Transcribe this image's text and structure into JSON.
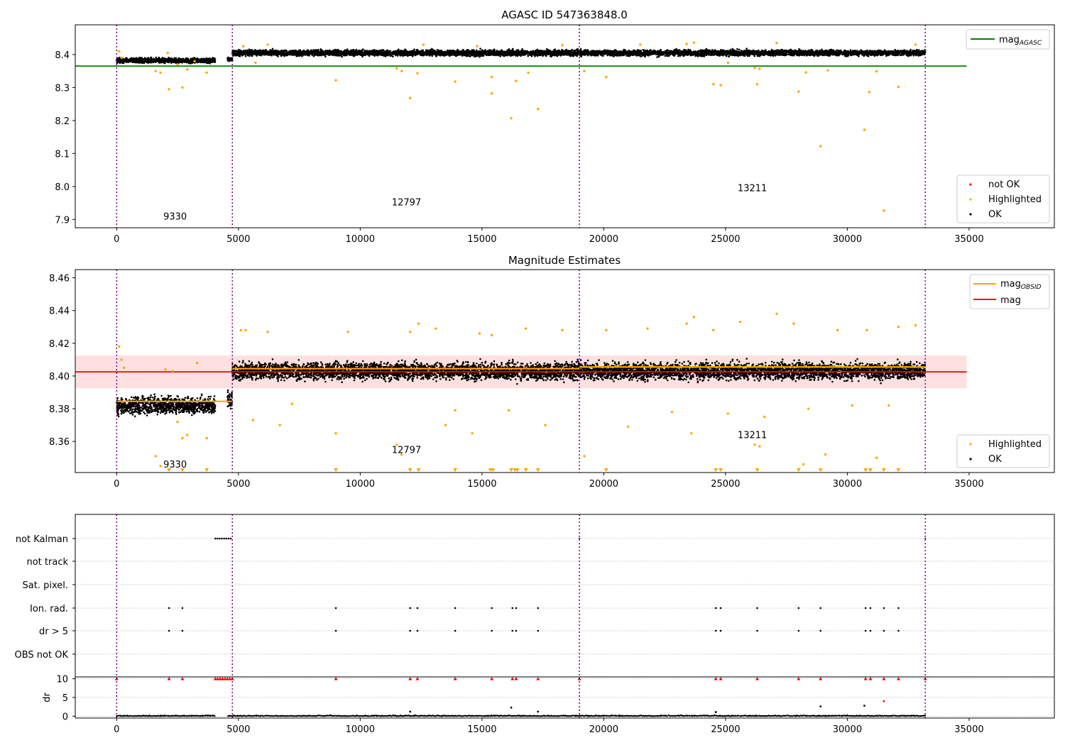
{
  "chart_data": [
    {
      "type": "scatter",
      "title": "AGASC ID 547363848.0",
      "xlim": [
        -1700,
        38500
      ],
      "ylim": [
        7.875,
        8.49
      ],
      "xticks": [
        0,
        5000,
        10000,
        15000,
        20000,
        25000,
        30000,
        35000
      ],
      "yticks": [
        7.9,
        8.0,
        8.1,
        8.2,
        8.3,
        8.4
      ],
      "obs_boundaries": [
        0,
        4750,
        19000,
        33200
      ],
      "obs_labels": [
        {
          "text": "9330",
          "x": 2400,
          "y": 7.9
        },
        {
          "text": "12797",
          "x": 11900,
          "y": 7.943
        },
        {
          "text": "13211",
          "x": 26100,
          "y": 7.986
        }
      ],
      "agasc_mag": 8.365,
      "agasc_line_x": [
        -1700,
        34900
      ],
      "ok_bands": [
        {
          "x": [
            0,
            4050
          ],
          "center": 8.382,
          "spread": 0.01
        },
        {
          "x": [
            4550,
            4750
          ],
          "center": 8.385,
          "spread": 0.009
        },
        {
          "x": [
            4750,
            33200
          ],
          "center": 8.405,
          "spread": 0.012
        }
      ],
      "highlighted_points": [
        [
          100,
          8.41
        ],
        [
          200,
          8.39
        ],
        [
          1600,
          8.35
        ],
        [
          1800,
          8.345
        ],
        [
          2100,
          8.405
        ],
        [
          2150,
          8.295
        ],
        [
          2500,
          8.37
        ],
        [
          2700,
          8.3
        ],
        [
          2900,
          8.355
        ],
        [
          3200,
          8.38
        ],
        [
          3700,
          8.345
        ],
        [
          5200,
          8.425
        ],
        [
          5700,
          8.375
        ],
        [
          6200,
          8.43
        ],
        [
          9000,
          8.322
        ],
        [
          11500,
          8.358
        ],
        [
          11700,
          8.35
        ],
        [
          12050,
          8.268
        ],
        [
          12350,
          8.343
        ],
        [
          12600,
          8.43
        ],
        [
          13900,
          8.318
        ],
        [
          14800,
          8.425
        ],
        [
          15400,
          8.332
        ],
        [
          15400,
          8.282
        ],
        [
          16200,
          8.207
        ],
        [
          16400,
          8.32
        ],
        [
          16900,
          8.345
        ],
        [
          17300,
          8.235
        ],
        [
          18300,
          8.428
        ],
        [
          19200,
          8.35
        ],
        [
          20100,
          8.332
        ],
        [
          21500,
          8.43
        ],
        [
          23400,
          8.432
        ],
        [
          23700,
          8.436
        ],
        [
          24500,
          8.31
        ],
        [
          24800,
          8.307
        ],
        [
          25100,
          8.375
        ],
        [
          26200,
          8.36
        ],
        [
          26300,
          8.31
        ],
        [
          26400,
          8.357
        ],
        [
          27100,
          8.435
        ],
        [
          28000,
          8.288
        ],
        [
          28300,
          8.346
        ],
        [
          28900,
          8.122
        ],
        [
          29200,
          8.352
        ],
        [
          30700,
          8.172
        ],
        [
          30900,
          8.286
        ],
        [
          31200,
          8.349
        ],
        [
          31500,
          7.927
        ],
        [
          32100,
          8.302
        ],
        [
          32800,
          8.43
        ]
      ],
      "legend_upper": [
        {
          "name": "mag_AGASC",
          "color": "#008000"
        }
      ],
      "legend_lower": [
        {
          "name": "not OK",
          "color": "#ff0000"
        },
        {
          "name": "Highlighted",
          "color": "#ffa500"
        },
        {
          "name": "OK",
          "color": "#000000"
        }
      ]
    },
    {
      "type": "scatter",
      "title": "Magnitude Estimates",
      "xlim": [
        -1700,
        38500
      ],
      "ylim": [
        8.341,
        8.465
      ],
      "xticks": [
        0,
        5000,
        10000,
        15000,
        20000,
        25000,
        30000,
        35000
      ],
      "yticks": [
        8.36,
        8.38,
        8.4,
        8.42,
        8.44,
        8.46
      ],
      "obs_boundaries": [
        0,
        4750,
        19000,
        33200
      ],
      "obs_labels": [
        {
          "text": "9330",
          "x": 2400,
          "y": 8.344
        },
        {
          "text": "12797",
          "x": 11900,
          "y": 8.353
        },
        {
          "text": "13211",
          "x": 26100,
          "y": 8.362
        }
      ],
      "mag": 8.4025,
      "mag_band": [
        8.3925,
        8.4125
      ],
      "mag_line_x": [
        -1700,
        34900
      ],
      "obsid_mags": [
        {
          "x": [
            0,
            4750
          ],
          "mag": 8.3845
        },
        {
          "x": [
            4750,
            19000
          ],
          "mag": 8.4045
        },
        {
          "x": [
            19000,
            33200
          ],
          "mag": 8.4055
        }
      ],
      "ok_bands": [
        {
          "x": [
            0,
            4050
          ],
          "center": 8.382,
          "spread": 0.007
        },
        {
          "x": [
            4550,
            4750
          ],
          "center": 8.385,
          "spread": 0.007
        },
        {
          "x": [
            4750,
            33200
          ],
          "center": 8.403,
          "spread": 0.007
        }
      ],
      "highlighted_points": [
        [
          100,
          8.418
        ],
        [
          200,
          8.41
        ],
        [
          300,
          8.405
        ],
        [
          1600,
          8.351
        ],
        [
          1800,
          8.345
        ],
        [
          2000,
          8.404
        ],
        [
          2300,
          8.403
        ],
        [
          2500,
          8.372
        ],
        [
          2700,
          8.362
        ],
        [
          2900,
          8.364
        ],
        [
          3300,
          8.408
        ],
        [
          3700,
          8.362
        ],
        [
          5100,
          8.428
        ],
        [
          5300,
          8.428
        ],
        [
          5600,
          8.373
        ],
        [
          6200,
          8.427
        ],
        [
          6700,
          8.37
        ],
        [
          7200,
          8.383
        ],
        [
          9000,
          8.365
        ],
        [
          9500,
          8.427
        ],
        [
          11500,
          8.358
        ],
        [
          11700,
          8.352
        ],
        [
          12050,
          8.427
        ],
        [
          12400,
          8.432
        ],
        [
          13100,
          8.429
        ],
        [
          13500,
          8.37
        ],
        [
          13900,
          8.379
        ],
        [
          14600,
          8.365
        ],
        [
          14900,
          8.426
        ],
        [
          15400,
          8.425
        ],
        [
          16100,
          8.379
        ],
        [
          16800,
          8.429
        ],
        [
          17600,
          8.37
        ],
        [
          18300,
          8.428
        ],
        [
          19200,
          8.351
        ],
        [
          20100,
          8.428
        ],
        [
          21000,
          8.369
        ],
        [
          21800,
          8.429
        ],
        [
          22800,
          8.378
        ],
        [
          23400,
          8.432
        ],
        [
          23600,
          8.365
        ],
        [
          23700,
          8.436
        ],
        [
          24500,
          8.428
        ],
        [
          25100,
          8.377
        ],
        [
          25600,
          8.433
        ],
        [
          26200,
          8.358
        ],
        [
          26400,
          8.357
        ],
        [
          26600,
          8.375
        ],
        [
          27100,
          8.438
        ],
        [
          27800,
          8.432
        ],
        [
          28200,
          8.346
        ],
        [
          28400,
          8.38
        ],
        [
          29100,
          8.352
        ],
        [
          29600,
          8.428
        ],
        [
          30200,
          8.382
        ],
        [
          30800,
          8.428
        ],
        [
          31200,
          8.35
        ],
        [
          31700,
          8.382
        ],
        [
          32100,
          8.43
        ],
        [
          32800,
          8.431
        ]
      ],
      "below_axis_markers": [
        2150,
        2700,
        3700,
        9000,
        12050,
        12400,
        13900,
        15350,
        15450,
        16200,
        16350,
        16450,
        16800,
        17300,
        20100,
        24600,
        24800,
        26300,
        28000,
        28900,
        30750,
        30950,
        31500,
        32100
      ],
      "legend_upper": [
        {
          "name": "mag_OBSID",
          "color": "#ffa500"
        },
        {
          "name": "mag",
          "color": "#ff0000"
        }
      ],
      "legend_lower": [
        {
          "name": "Highlighted",
          "color": "#ffa500"
        },
        {
          "name": "OK",
          "color": "#000000"
        }
      ]
    },
    {
      "type": "scatter",
      "title": "",
      "xlim": [
        -1700,
        38500
      ],
      "flag_rows": [
        "not Kalman",
        "not track",
        "Sat. pixel.",
        "Ion. rad.",
        "dr > 5",
        "OBS not OK"
      ],
      "obs_boundaries": [
        0,
        4750,
        19000,
        33200
      ],
      "not_kalman_x": [
        4050,
        4700
      ],
      "not_kalman_isolated": [
        19000,
        33200
      ],
      "flag_points": [
        2150,
        2700,
        9000,
        12050,
        12350,
        13900,
        15400,
        16250,
        16400,
        17300,
        24600,
        24800,
        26300,
        28000,
        28900,
        30750,
        30950,
        31500,
        32100
      ],
      "dr_ylabel": "dr",
      "dr_ylim": [
        -0.5,
        10.5
      ],
      "dr_yticks": [
        0,
        5,
        10
      ],
      "dr_spikes": [
        [
          12050,
          1.2
        ],
        [
          16200,
          2.3
        ],
        [
          17300,
          1.2
        ],
        [
          24600,
          1.1
        ],
        [
          28900,
          2.6
        ],
        [
          30700,
          2.8
        ],
        [
          31500,
          4.0
        ]
      ],
      "dr_red_markers": [
        0,
        2150,
        2700,
        4050,
        4150,
        4250,
        4350,
        4450,
        4550,
        4650,
        4750,
        9000,
        12050,
        12350,
        13900,
        15400,
        16250,
        16400,
        17300,
        19000,
        24600,
        24800,
        26300,
        28000,
        28900,
        30750,
        30950,
        31500,
        32100,
        33200
      ]
    }
  ]
}
